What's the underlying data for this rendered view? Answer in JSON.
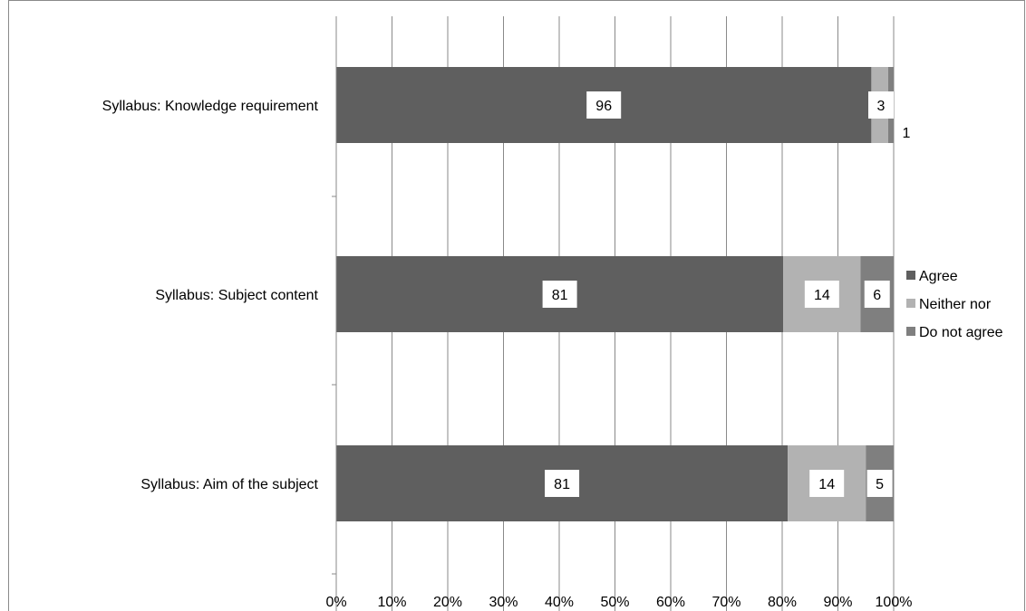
{
  "chart_data": {
    "type": "bar",
    "orientation": "horizontal",
    "stacked": "percent",
    "categories": [
      "Syllabus: Knowledge requirement",
      "Syllabus: Subject content",
      "Syllabus: Aim of the subject"
    ],
    "series": [
      {
        "name": "Agree",
        "values": [
          96,
          81,
          81
        ],
        "color": "#5f5f5f"
      },
      {
        "name": "Neither nor",
        "values": [
          3,
          14,
          14
        ],
        "color": "#b2b2b2"
      },
      {
        "name": "Do not agree",
        "values": [
          1,
          6,
          5
        ],
        "color": "#7f7f7f"
      }
    ],
    "x_ticks": [
      "0%",
      "10%",
      "20%",
      "30%",
      "40%",
      "50%",
      "60%",
      "70%",
      "80%",
      "90%",
      "100%"
    ],
    "xlim": [
      0,
      100
    ],
    "grid": true,
    "legend_position": "right"
  }
}
